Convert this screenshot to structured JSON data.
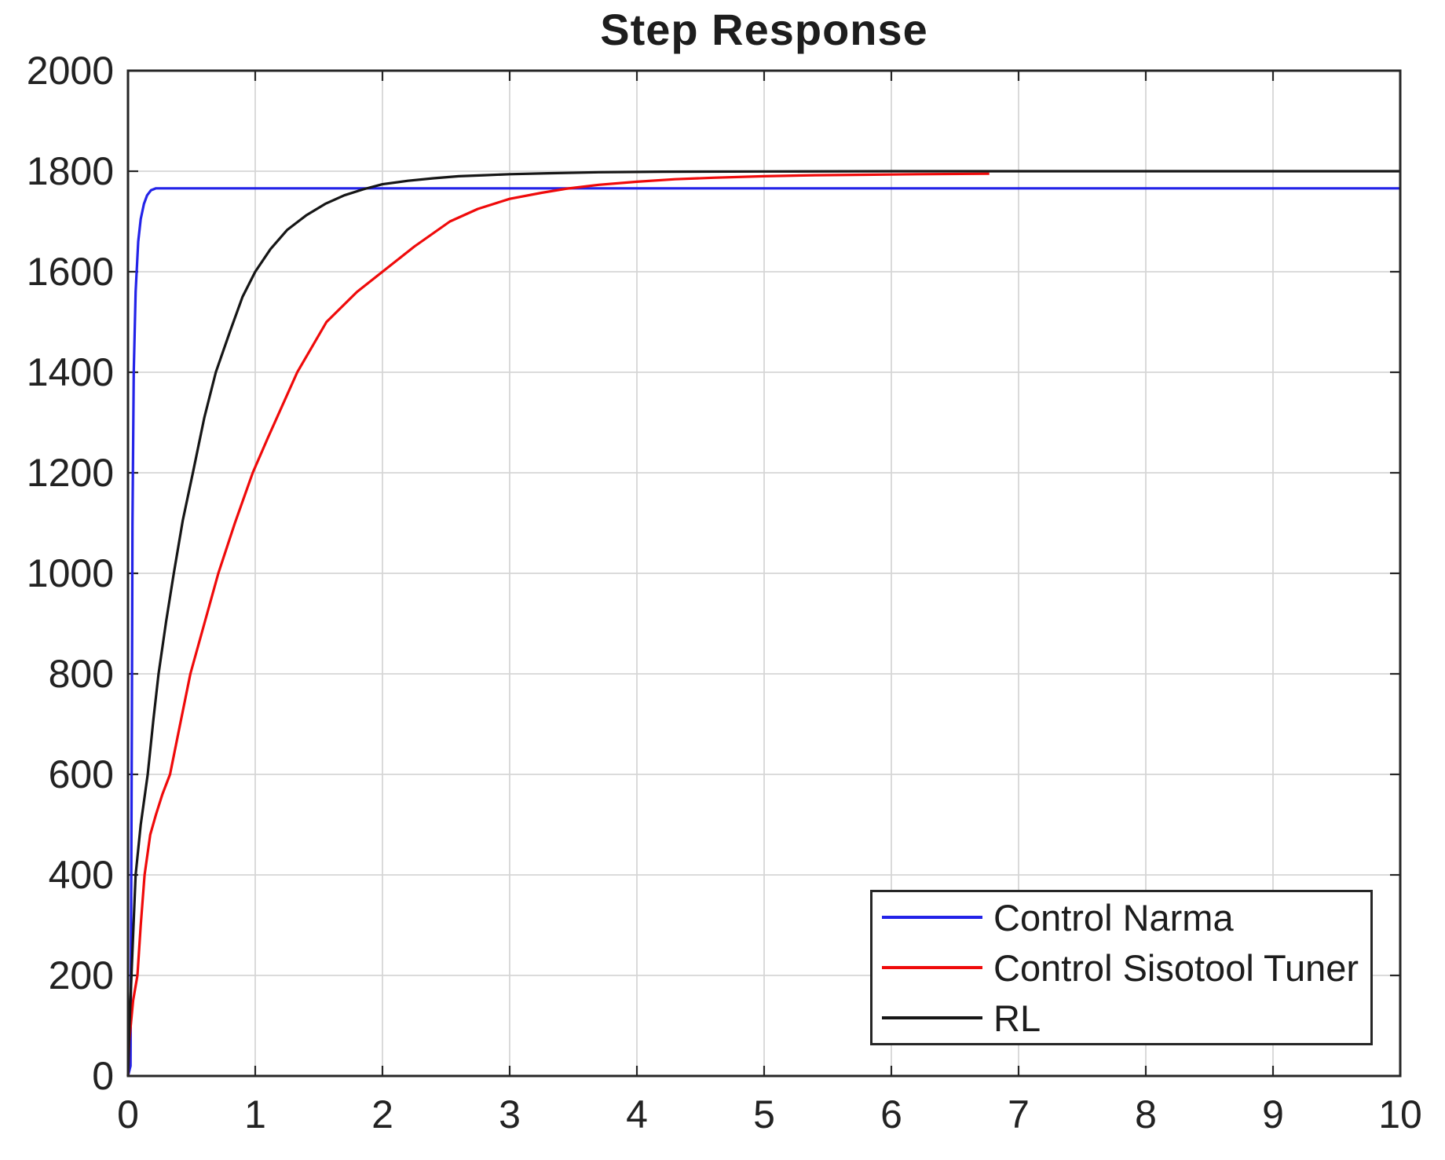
{
  "figure": {
    "background": "#ffffff"
  },
  "chart_data": {
    "type": "line",
    "title": "Step Response",
    "xlabel": "",
    "ylabel": "",
    "xlim": [
      0,
      10
    ],
    "ylim": [
      0,
      2000
    ],
    "x_ticks": [
      0,
      1,
      2,
      3,
      4,
      5,
      6,
      7,
      8,
      9,
      10
    ],
    "y_ticks": [
      0,
      200,
      400,
      600,
      800,
      1000,
      1200,
      1400,
      1600,
      1800,
      2000
    ],
    "grid": true,
    "grid_color": "#d6d6d6",
    "axis_color": "#262626",
    "legend_position": "lower-right",
    "series": [
      {
        "name": "Control Narma",
        "color": "#2323e8",
        "points": [
          [
            0,
            0
          ],
          [
            0.02,
            20
          ],
          [
            0.03,
            700
          ],
          [
            0.035,
            1100
          ],
          [
            0.045,
            1400
          ],
          [
            0.06,
            1560
          ],
          [
            0.08,
            1660
          ],
          [
            0.1,
            1705
          ],
          [
            0.125,
            1735
          ],
          [
            0.15,
            1752
          ],
          [
            0.18,
            1762
          ],
          [
            0.22,
            1766
          ],
          [
            0.5,
            1766
          ],
          [
            10,
            1766
          ]
        ]
      },
      {
        "name": "Control Sisotool Tuner",
        "color": "#ef0a0a",
        "points": [
          [
            0,
            0
          ],
          [
            0.01,
            70
          ],
          [
            0.04,
            150
          ],
          [
            0.074,
            200
          ],
          [
            0.1,
            300
          ],
          [
            0.13,
            400
          ],
          [
            0.175,
            480
          ],
          [
            0.22,
            520
          ],
          [
            0.27,
            560
          ],
          [
            0.33,
            600
          ],
          [
            0.41,
            700
          ],
          [
            0.49,
            800
          ],
          [
            0.6,
            900
          ],
          [
            0.71,
            1000
          ],
          [
            0.84,
            1100
          ],
          [
            0.98,
            1200
          ],
          [
            1.1,
            1270
          ],
          [
            1.33,
            1400
          ],
          [
            1.56,
            1500
          ],
          [
            1.8,
            1560
          ],
          [
            2.0,
            1600
          ],
          [
            2.25,
            1650
          ],
          [
            2.53,
            1700
          ],
          [
            2.75,
            1725
          ],
          [
            3.0,
            1745
          ],
          [
            3.25,
            1757
          ],
          [
            3.44,
            1765
          ],
          [
            3.7,
            1773
          ],
          [
            4.0,
            1779
          ],
          [
            4.3,
            1784
          ],
          [
            4.6,
            1787
          ],
          [
            5.0,
            1790
          ],
          [
            5.4,
            1792
          ],
          [
            5.8,
            1793
          ],
          [
            6.2,
            1794
          ],
          [
            6.77,
            1795
          ]
        ]
      },
      {
        "name": "RL",
        "color": "#161616",
        "points": [
          [
            0,
            0
          ],
          [
            0.012,
            100
          ],
          [
            0.03,
            220
          ],
          [
            0.06,
            400
          ],
          [
            0.1,
            500
          ],
          [
            0.155,
            600
          ],
          [
            0.2,
            710
          ],
          [
            0.24,
            800
          ],
          [
            0.3,
            905
          ],
          [
            0.36,
            1000
          ],
          [
            0.43,
            1105
          ],
          [
            0.51,
            1200
          ],
          [
            0.6,
            1310
          ],
          [
            0.69,
            1400
          ],
          [
            0.8,
            1480
          ],
          [
            0.9,
            1550
          ],
          [
            1.0,
            1600
          ],
          [
            1.12,
            1645
          ],
          [
            1.25,
            1683
          ],
          [
            1.4,
            1712
          ],
          [
            1.55,
            1735
          ],
          [
            1.7,
            1752
          ],
          [
            1.85,
            1764
          ],
          [
            2.0,
            1774
          ],
          [
            2.2,
            1781
          ],
          [
            2.4,
            1786
          ],
          [
            2.6,
            1790
          ],
          [
            2.8,
            1792
          ],
          [
            3.0,
            1794
          ],
          [
            3.3,
            1796
          ],
          [
            3.7,
            1798
          ],
          [
            4.2,
            1799
          ],
          [
            5.0,
            1799.5
          ],
          [
            6.0,
            1800
          ],
          [
            10,
            1800
          ]
        ]
      }
    ]
  },
  "legend": {
    "items": [
      "Control Narma",
      "Control Sisotool Tuner",
      "RL"
    ]
  }
}
